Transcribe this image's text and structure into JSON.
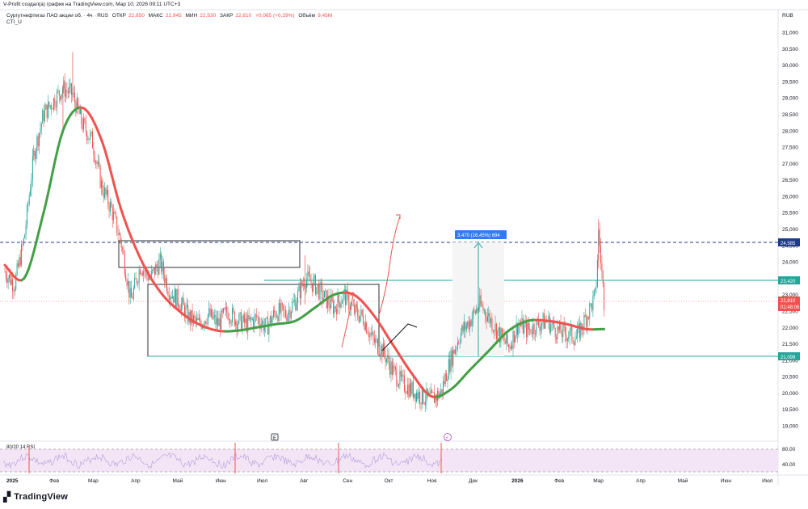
{
  "header": {
    "attribution": "V-Profit создал(а) график на TradingView.com, Мар 10, 2026 09:11 UTC+3",
    "symbol": "Сургутнефтегаз ПАО акции об. · 4ч · RUS",
    "open_label": "ОТКР",
    "open": "22,850",
    "high_label": "МАКС",
    "high": "22,945",
    "low_label": "МИН",
    "low": "22,530",
    "close_label": "ЗАКР",
    "close": "22,810",
    "change": "+0,065 (+0,29%)",
    "volume_label": "Объём",
    "volume": "9,45M",
    "indicator": "CTI_U"
  },
  "price_scale": {
    "currency": "RUB"
  },
  "rsi_panel": {
    "title": "80/20 14 RSI",
    "ticks": [
      "80,00",
      "40,00"
    ]
  },
  "badges": {
    "dashed_level": "24,585",
    "upper_level": "23,420",
    "last_price": "22,810",
    "timer": "01:48:06",
    "lower_level": "21,099",
    "measure": "3,470 (16,45%) 694"
  },
  "colors": {
    "up": "#26a69a",
    "down": "#ef5350",
    "dashed": "#1e3a8a",
    "measure": "#3179f5",
    "box": "#131722",
    "level": "#26a69a",
    "curve_green": "#43a047",
    "curve_red": "#ef5350",
    "rsi_bg": "#f3e5f5"
  },
  "icons": {
    "event_e": "E",
    "event_flash": "⚡"
  },
  "footer": {
    "brand": "TradingView"
  },
  "chart_data": {
    "type": "line",
    "title": "",
    "y_axis": {
      "min": 19000,
      "max": 31000,
      "ticks": [
        "31,000",
        "30,500",
        "30,000",
        "29,500",
        "29,000",
        "28,500",
        "28,000",
        "27,500",
        "27,000",
        "26,500",
        "26,000",
        "25,500",
        "25,000",
        "24,500",
        "24,000",
        "23,500",
        "23,000",
        "22,500",
        "22,000",
        "21,500",
        "21,000",
        "20,500",
        "20,000",
        "19,500",
        "19,000"
      ]
    },
    "x_axis": {
      "ticks": [
        "2025",
        "Фев",
        "Мар",
        "Апр",
        "Май",
        "Июн",
        "Июл",
        "Авг",
        "Сен",
        "Окт",
        "Ноя",
        "Дек",
        "2026",
        "Фев",
        "Мар",
        "Апр",
        "Май",
        "Июн",
        "Июл"
      ]
    },
    "price_series": [
      [
        "2025-01-01",
        23700
      ],
      [
        "2025-01-08",
        23300
      ],
      [
        "2025-01-15",
        24700
      ],
      [
        "2025-01-22",
        27300
      ],
      [
        "2025-01-29",
        28500
      ],
      [
        "2025-02-05",
        28900
      ],
      [
        "2025-02-12",
        29300
      ],
      [
        "2025-02-19",
        29100
      ],
      [
        "2025-02-26",
        28200
      ],
      [
        "2025-03-05",
        27700
      ],
      [
        "2025-03-12",
        26300
      ],
      [
        "2025-03-19",
        25600
      ],
      [
        "2025-03-26",
        24600
      ],
      [
        "2025-04-02",
        22800
      ],
      [
        "2025-04-09",
        23900
      ],
      [
        "2025-04-16",
        23500
      ],
      [
        "2025-04-23",
        24000
      ],
      [
        "2025-04-30",
        23100
      ],
      [
        "2025-05-07",
        22800
      ],
      [
        "2025-05-14",
        22300
      ],
      [
        "2025-05-21",
        22100
      ],
      [
        "2025-05-28",
        22400
      ],
      [
        "2025-06-04",
        22100
      ],
      [
        "2025-06-11",
        22500
      ],
      [
        "2025-06-18",
        22200
      ],
      [
        "2025-06-25",
        22100
      ],
      [
        "2025-07-02",
        22300
      ],
      [
        "2025-07-09",
        22000
      ],
      [
        "2025-07-16",
        22500
      ],
      [
        "2025-07-23",
        22400
      ],
      [
        "2025-07-30",
        22800
      ],
      [
        "2025-08-06",
        23500
      ],
      [
        "2025-08-13",
        23300
      ],
      [
        "2025-08-20",
        22900
      ],
      [
        "2025-08-27",
        22600
      ],
      [
        "2025-09-03",
        23000
      ],
      [
        "2025-09-10",
        22500
      ],
      [
        "2025-09-17",
        22300
      ],
      [
        "2025-09-24",
        21600
      ],
      [
        "2025-10-01",
        21300
      ],
      [
        "2025-10-08",
        20700
      ],
      [
        "2025-10-15",
        20300
      ],
      [
        "2025-10-22",
        20100
      ],
      [
        "2025-10-29",
        19900
      ],
      [
        "2025-11-05",
        19800
      ],
      [
        "2025-11-12",
        20000
      ],
      [
        "2025-11-19",
        21000
      ],
      [
        "2025-11-26",
        21800
      ],
      [
        "2025-12-03",
        22200
      ],
      [
        "2025-12-10",
        22700
      ],
      [
        "2025-12-17",
        22300
      ],
      [
        "2025-12-24",
        21800
      ],
      [
        "2025-12-31",
        21400
      ],
      [
        "2026-01-07",
        22100
      ],
      [
        "2026-01-14",
        21900
      ],
      [
        "2026-01-21",
        22100
      ],
      [
        "2026-01-28",
        22200
      ],
      [
        "2026-02-04",
        21900
      ],
      [
        "2026-02-11",
        21800
      ],
      [
        "2026-02-18",
        21700
      ],
      [
        "2026-02-25",
        22300
      ],
      [
        "2026-03-04",
        23000
      ],
      [
        "2026-03-06",
        24900
      ],
      [
        "2026-03-10",
        22810
      ]
    ],
    "cti_curve": [
      [
        "2025-01-01",
        23900
      ],
      [
        "2025-01-15",
        23500
      ],
      [
        "2025-01-29",
        25500
      ],
      [
        "2025-02-12",
        28000
      ],
      [
        "2025-02-26",
        28700
      ],
      [
        "2025-03-12",
        27700
      ],
      [
        "2025-03-26",
        25600
      ],
      [
        "2025-04-09",
        24100
      ],
      [
        "2025-04-23",
        23100
      ],
      [
        "2025-05-07",
        22500
      ],
      [
        "2025-05-21",
        22100
      ],
      [
        "2025-06-04",
        21900
      ],
      [
        "2025-06-18",
        21900
      ],
      [
        "2025-07-02",
        22000
      ],
      [
        "2025-07-16",
        22100
      ],
      [
        "2025-07-30",
        22200
      ],
      [
        "2025-08-13",
        22600
      ],
      [
        "2025-08-27",
        23000
      ],
      [
        "2025-09-10",
        23000
      ],
      [
        "2025-09-24",
        22400
      ],
      [
        "2025-10-08",
        21500
      ],
      [
        "2025-10-22",
        20600
      ],
      [
        "2025-11-05",
        19900
      ],
      [
        "2025-11-19",
        20100
      ],
      [
        "2025-12-03",
        20700
      ],
      [
        "2025-12-17",
        21300
      ],
      [
        "2025-12-31",
        21900
      ],
      [
        "2026-01-14",
        22200
      ],
      [
        "2026-01-28",
        22200
      ],
      [
        "2026-02-11",
        22100
      ],
      [
        "2026-02-25",
        21950
      ],
      [
        "2026-03-10",
        21950
      ]
    ],
    "levels": [
      {
        "value": 24585,
        "style": "dashed"
      },
      {
        "value": 23420,
        "style": "solid"
      },
      {
        "value": 21099,
        "style": "solid"
      },
      {
        "value": 22810,
        "style": "last_price"
      }
    ],
    "rsi": {
      "upper": 80,
      "lower": 20
    },
    "grid": false
  }
}
